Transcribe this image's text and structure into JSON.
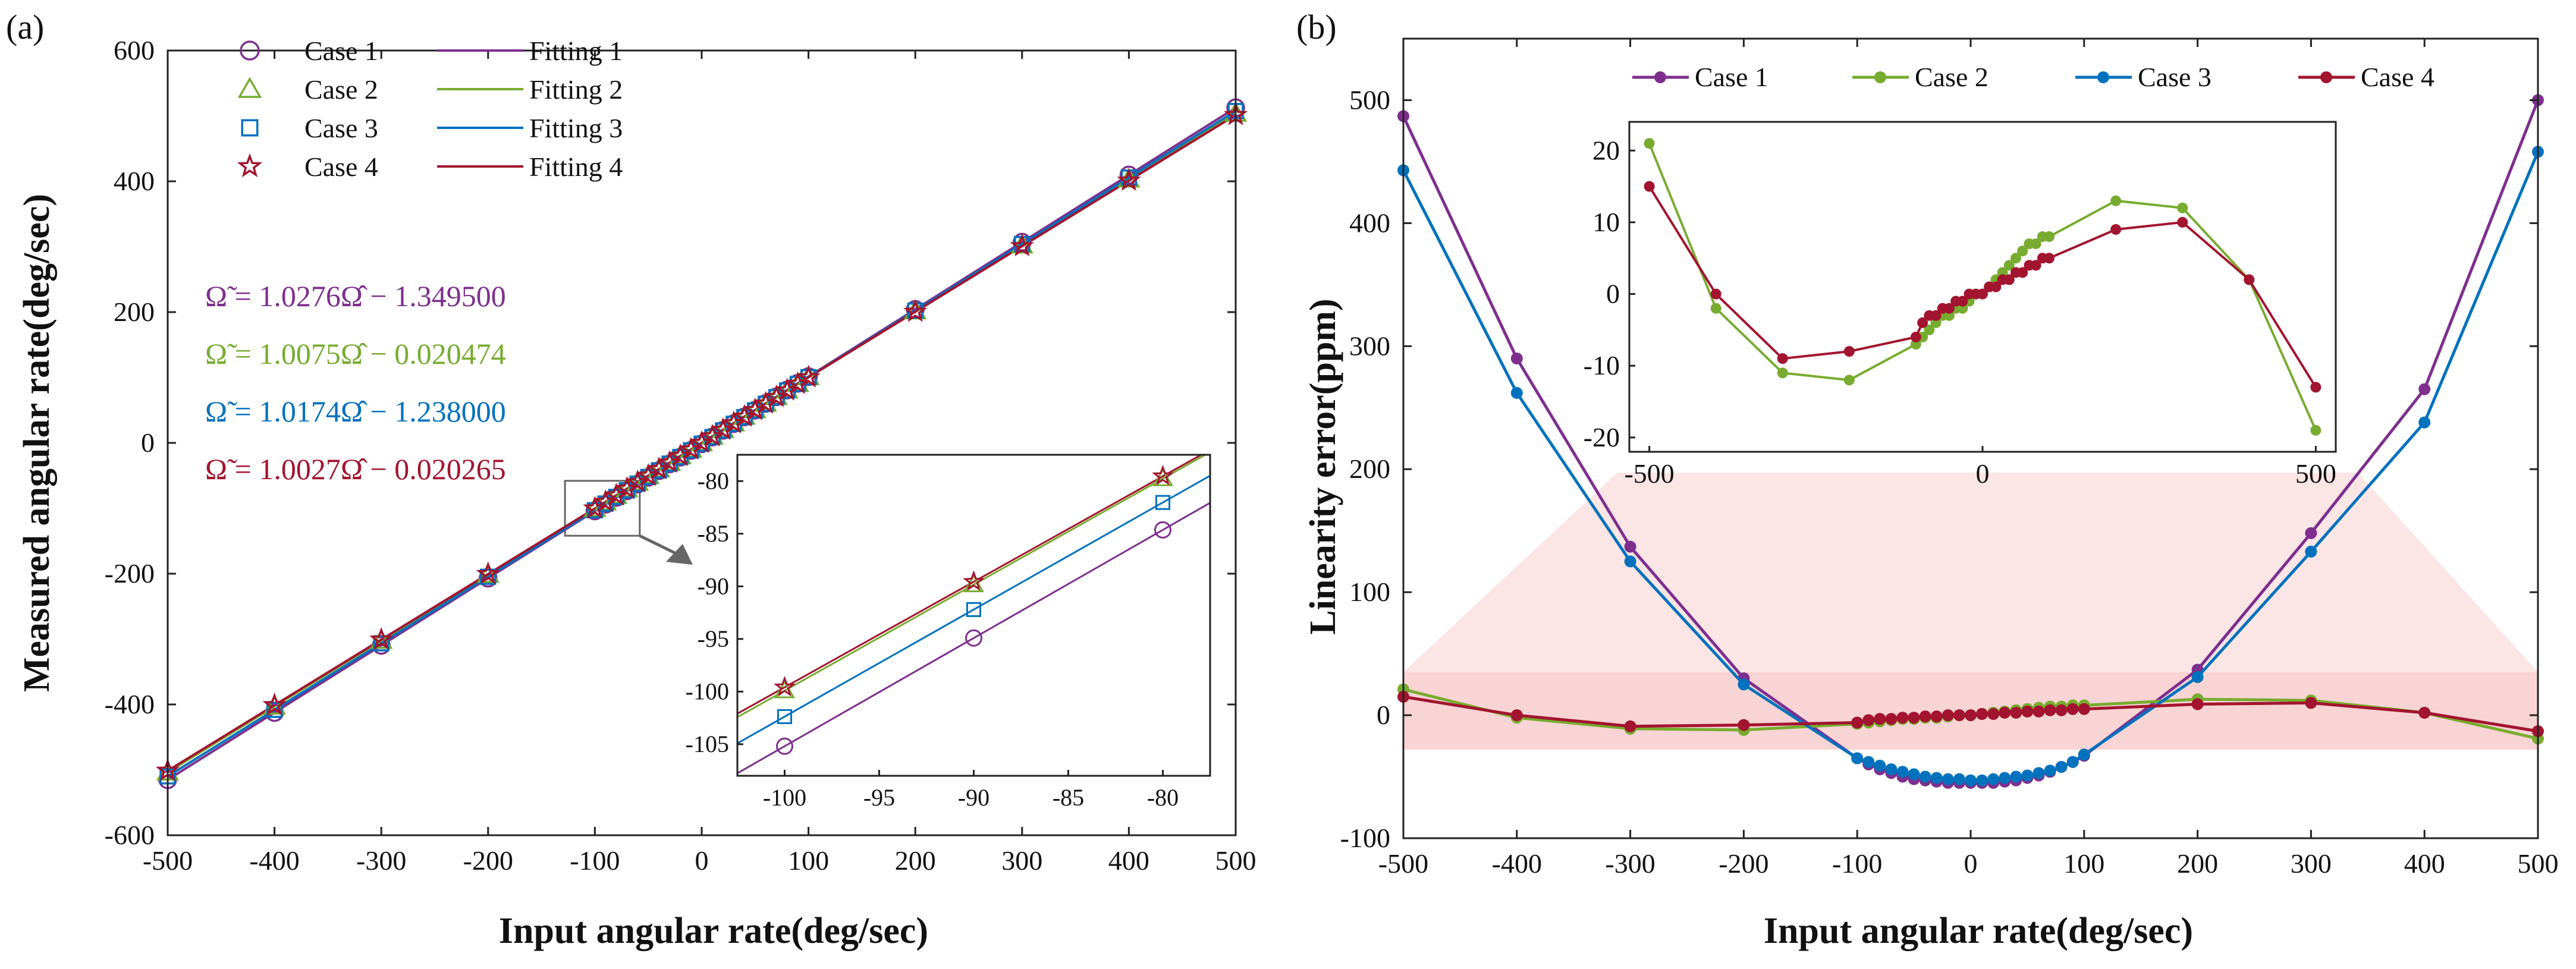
{
  "panel_labels": {
    "a": "(a)",
    "b": "(b)"
  },
  "colors": {
    "case1": "#7e2f8e",
    "case2": "#77ac30",
    "case3": "#0072bd",
    "case4": "#a2142f",
    "zoom_shade": "#f7c6c6",
    "inset_box": "#666666"
  },
  "chart_data": [
    {
      "id": "a",
      "type": "scatter",
      "xlabel": "Input angular rate(deg/sec)",
      "ylabel": "Measured angular rate(deg/sec)",
      "xlim": [
        -500,
        500
      ],
      "ylim": [
        -600,
        600
      ],
      "xticks": [
        -500,
        -400,
        -300,
        -200,
        -100,
        0,
        100,
        200,
        300,
        400,
        500
      ],
      "yticks": [
        -600,
        -400,
        -200,
        0,
        200,
        400,
        600
      ],
      "x": [
        -500,
        -400,
        -300,
        -200,
        -100,
        -90,
        -80,
        -70,
        -60,
        -50,
        -40,
        -30,
        -20,
        -10,
        0,
        10,
        20,
        30,
        40,
        50,
        60,
        70,
        80,
        90,
        100,
        200,
        300,
        400,
        500
      ],
      "series": [
        {
          "name": "Case 1",
          "marker": "circle",
          "fit_name": "Fitting 1",
          "slope": 1.0276,
          "intercept": -1.3495
        },
        {
          "name": "Case 2",
          "marker": "triangle",
          "fit_name": "Fitting 2",
          "slope": 1.0075,
          "intercept": -0.020474
        },
        {
          "name": "Case 3",
          "marker": "square",
          "fit_name": "Fitting 3",
          "slope": 1.0174,
          "intercept": -1.238
        },
        {
          "name": "Case 4",
          "marker": "star",
          "fit_name": "Fitting 4",
          "slope": 1.0027,
          "intercept": -0.020265
        }
      ],
      "equations": [
        "Ω̃ = 1.0276Ω̂ − 1.349500",
        "Ω̃ = 1.0075Ω̂ − 0.020474",
        "Ω̃ = 1.0174Ω̂ − 1.238000",
        "Ω̃ = 1.0027Ω̂ − 0.020265"
      ],
      "inset": {
        "xlim": [
          -102.5,
          -77.5
        ],
        "ylim": [
          -108,
          -77.5
        ],
        "xticks": [
          -100,
          -95,
          -90,
          -85,
          -80
        ],
        "yticks": [
          -105,
          -100,
          -95,
          -90,
          -85,
          -80
        ],
        "x": [
          -100,
          -90,
          -80
        ],
        "offsets": [
          -1.08,
          0.86,
          0.6,
          0.7
        ]
      }
    },
    {
      "id": "b",
      "type": "line",
      "xlabel": "Input angular rate(deg/sec)",
      "ylabel": "Linearity error(ppm)",
      "xlim": [
        -500,
        500
      ],
      "ylim": [
        -100,
        550
      ],
      "xticks": [
        -500,
        -400,
        -300,
        -200,
        -100,
        0,
        100,
        200,
        300,
        400,
        500
      ],
      "yticks": [
        -100,
        0,
        100,
        200,
        300,
        400,
        500
      ],
      "x": [
        -500,
        -400,
        -300,
        -200,
        -100,
        -90,
        -80,
        -70,
        -60,
        -50,
        -40,
        -30,
        -20,
        -10,
        0,
        10,
        20,
        30,
        40,
        50,
        60,
        70,
        80,
        90,
        100,
        200,
        300,
        400,
        500
      ],
      "series": [
        {
          "name": "Case 1",
          "values": [
            487,
            290,
            137,
            30,
            -35,
            -40,
            -44,
            -47,
            -50,
            -52,
            -53,
            -54,
            -55,
            -55,
            -55,
            -55,
            -55,
            -54,
            -53,
            -51,
            -49,
            -46,
            -42,
            -38,
            -33,
            37,
            148,
            265,
            500
          ]
        },
        {
          "name": "Case 2",
          "values": [
            21,
            -2,
            -11,
            -12,
            -7,
            -6,
            -5,
            -4,
            -3,
            -3,
            -2,
            -2,
            -1,
            0,
            0,
            1,
            2,
            3,
            4,
            5,
            6,
            7,
            7,
            8,
            8,
            13,
            12,
            2,
            -19
          ]
        },
        {
          "name": "Case 3",
          "values": [
            443,
            262,
            125,
            25,
            -35,
            -38,
            -41,
            -44,
            -46,
            -48,
            -50,
            -51,
            -52,
            -52,
            -53,
            -53,
            -52,
            -51,
            -50,
            -49,
            -47,
            -45,
            -42,
            -38,
            -32,
            31,
            133,
            238,
            458
          ]
        },
        {
          "name": "Case 4",
          "values": [
            15,
            0,
            -9,
            -8,
            -6,
            -4,
            -3,
            -3,
            -2,
            -2,
            -1,
            -1,
            0,
            0,
            0,
            1,
            1,
            2,
            2,
            3,
            3,
            4,
            4,
            5,
            5,
            9,
            10,
            2,
            -13
          ]
        }
      ],
      "legend_position": "top",
      "inset": {
        "xlim": [
          -530,
          530
        ],
        "ylim": [
          -22,
          24
        ],
        "xticks": [
          -500,
          0,
          500
        ],
        "yticks": [
          -20,
          -10,
          0,
          10,
          20
        ],
        "series_names": [
          "Case 2",
          "Case 4"
        ]
      }
    }
  ]
}
